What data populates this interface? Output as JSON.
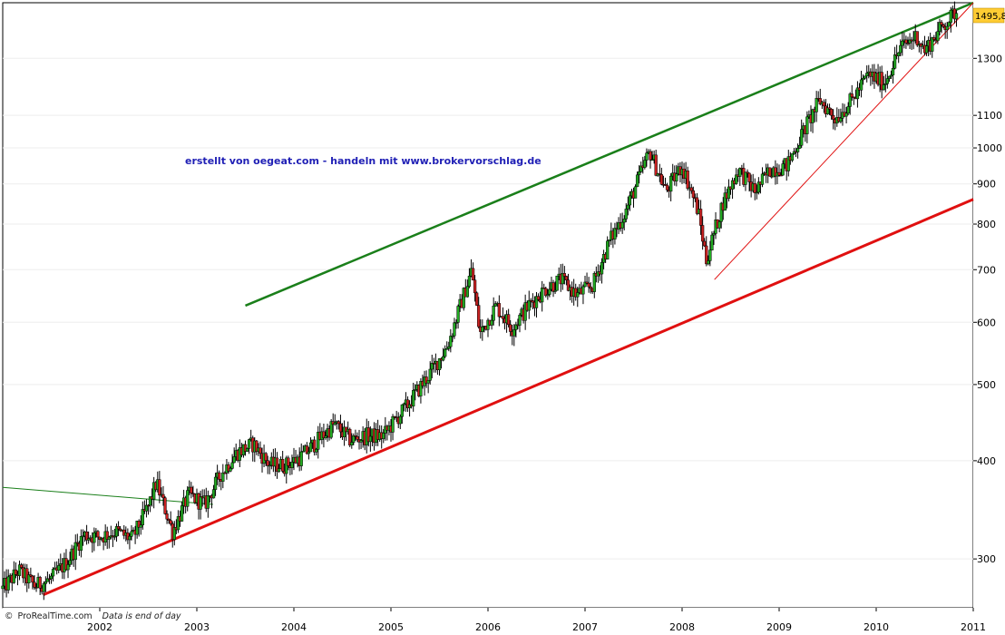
{
  "watermark": "erstellt von oegeat.com - handeln mit www.brokervorschlag.de",
  "credit": {
    "copyright_symbol": "©",
    "source": "ProRealTime.com",
    "note": "Data is end of day"
  },
  "current_price_label": "1495,8",
  "chart_data": {
    "type": "line",
    "candlestick": true,
    "y_scale": "log",
    "ylim": [
      260,
      1530
    ],
    "y_ticks": [
      "300",
      "400",
      "500",
      "600",
      "700",
      "800",
      "900",
      "1000",
      "1100",
      "1300"
    ],
    "x_ticks": [
      "2002",
      "2003",
      "2004",
      "2005",
      "2006",
      "2007",
      "2008",
      "2009",
      "2010",
      "2011"
    ],
    "xlim": [
      "2001-07",
      "2011-07"
    ],
    "last_value": 1495.8,
    "series": [
      {
        "type": "candlestick",
        "color": "#000000",
        "up_color": "#22aa22",
        "down_color": "#cc2222",
        "points": [
          {
            "x": "2001-07",
            "y": 275
          },
          {
            "x": "2001-09",
            "y": 290
          },
          {
            "x": "2001-11",
            "y": 277
          },
          {
            "x": "2002-01",
            "y": 283
          },
          {
            "x": "2002-03",
            "y": 298
          },
          {
            "x": "2002-05",
            "y": 322
          },
          {
            "x": "2002-07",
            "y": 320
          },
          {
            "x": "2002-09",
            "y": 325
          },
          {
            "x": "2002-11",
            "y": 318
          },
          {
            "x": "2003-01",
            "y": 350
          },
          {
            "x": "2003-02",
            "y": 375
          },
          {
            "x": "2003-04",
            "y": 325
          },
          {
            "x": "2003-06",
            "y": 362
          },
          {
            "x": "2003-08",
            "y": 352
          },
          {
            "x": "2003-10",
            "y": 385
          },
          {
            "x": "2003-12",
            "y": 410
          },
          {
            "x": "2004-02",
            "y": 420
          },
          {
            "x": "2004-04",
            "y": 395
          },
          {
            "x": "2004-06",
            "y": 395
          },
          {
            "x": "2004-08",
            "y": 405
          },
          {
            "x": "2004-10",
            "y": 425
          },
          {
            "x": "2004-12",
            "y": 445
          },
          {
            "x": "2005-02",
            "y": 425
          },
          {
            "x": "2005-04",
            "y": 430
          },
          {
            "x": "2005-06",
            "y": 430
          },
          {
            "x": "2005-09",
            "y": 470
          },
          {
            "x": "2005-12",
            "y": 520
          },
          {
            "x": "2006-02",
            "y": 560
          },
          {
            "x": "2006-05",
            "y": 700
          },
          {
            "x": "2006-06",
            "y": 580
          },
          {
            "x": "2006-08",
            "y": 630
          },
          {
            "x": "2006-10",
            "y": 590
          },
          {
            "x": "2006-12",
            "y": 630
          },
          {
            "x": "2007-02",
            "y": 660
          },
          {
            "x": "2007-04",
            "y": 680
          },
          {
            "x": "2007-06",
            "y": 650
          },
          {
            "x": "2007-08",
            "y": 670
          },
          {
            "x": "2007-10",
            "y": 760
          },
          {
            "x": "2007-12",
            "y": 830
          },
          {
            "x": "2008-03",
            "y": 990
          },
          {
            "x": "2008-05",
            "y": 880
          },
          {
            "x": "2008-07",
            "y": 950
          },
          {
            "x": "2008-09",
            "y": 830
          },
          {
            "x": "2008-10",
            "y": 720
          },
          {
            "x": "2008-12",
            "y": 850
          },
          {
            "x": "2009-02",
            "y": 940
          },
          {
            "x": "2009-04",
            "y": 880
          },
          {
            "x": "2009-06",
            "y": 940
          },
          {
            "x": "2009-08",
            "y": 950
          },
          {
            "x": "2009-10",
            "y": 1050
          },
          {
            "x": "2009-12",
            "y": 1150
          },
          {
            "x": "2010-02",
            "y": 1090
          },
          {
            "x": "2010-04",
            "y": 1150
          },
          {
            "x": "2010-06",
            "y": 1240
          },
          {
            "x": "2010-08",
            "y": 1210
          },
          {
            "x": "2010-10",
            "y": 1340
          },
          {
            "x": "2010-12",
            "y": 1390
          },
          {
            "x": "2011-01",
            "y": 1330
          },
          {
            "x": "2011-03",
            "y": 1420
          },
          {
            "x": "2011-05",
            "y": 1495.8
          }
        ]
      }
    ],
    "trendlines": [
      {
        "color": "#1a7f1a",
        "width": 2.5,
        "from": {
          "x": "2004-01",
          "y": 630
        },
        "to": {
          "x": "2011-07",
          "y": 1530
        }
      },
      {
        "color": "#e01010",
        "width": 3,
        "from": {
          "x": "2001-12",
          "y": 270
        },
        "to": {
          "x": "2011-07",
          "y": 860
        }
      },
      {
        "color": "#e01010",
        "width": 1,
        "from": {
          "x": "2008-11",
          "y": 680
        },
        "to": {
          "x": "2011-07",
          "y": 1530
        }
      },
      {
        "color": "#1a7f1a",
        "width": 1,
        "from": {
          "x": "2001-07",
          "y": 370
        },
        "to": {
          "x": "2003-09",
          "y": 352
        }
      }
    ]
  }
}
